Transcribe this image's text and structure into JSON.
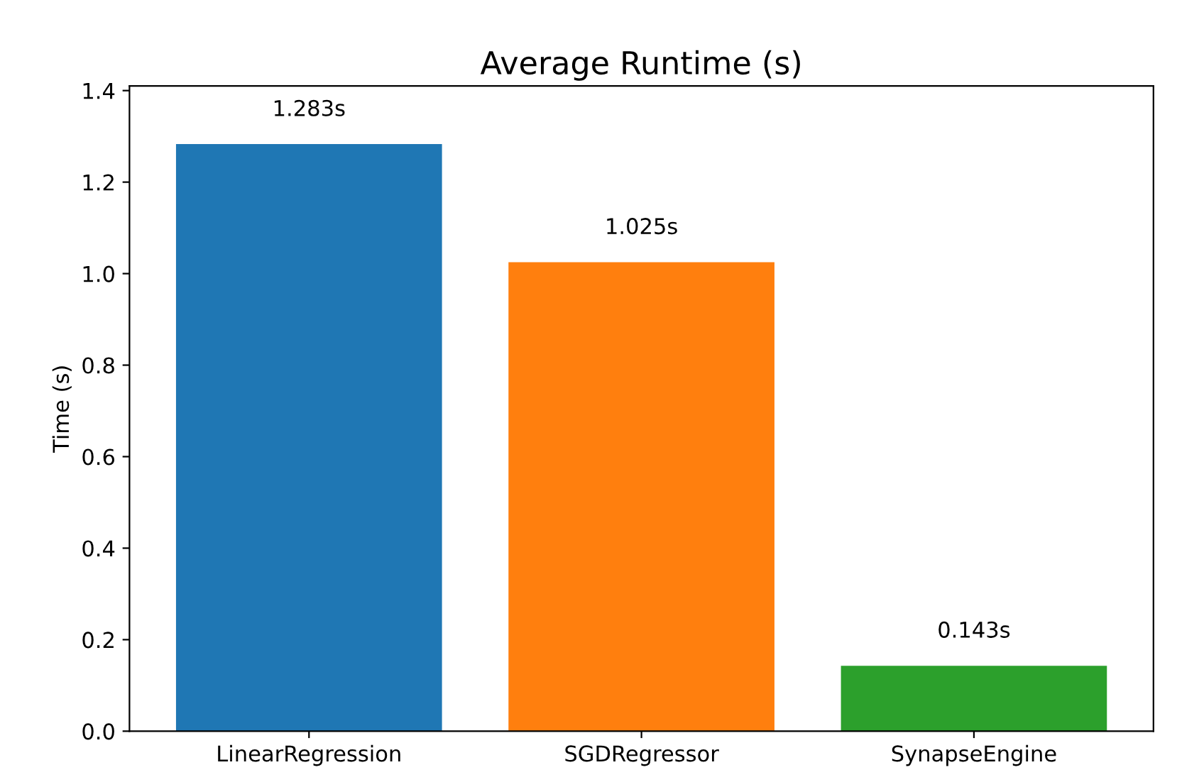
{
  "chart_data": {
    "type": "bar",
    "title": "Average Runtime (s)",
    "ylabel": "Time (s)",
    "categories": [
      "LinearRegression",
      "SGDRegressor",
      "SynapseEngine"
    ],
    "values": [
      1.283,
      1.025,
      0.143
    ],
    "colors": [
      "#1f77b4",
      "#ff7f0e",
      "#2ca02c"
    ],
    "value_labels": [
      "1.283s",
      "1.025s",
      "0.143s"
    ],
    "ylim": [
      0,
      1.41
    ],
    "yticks": [
      {
        "value": 0,
        "label": "0.0"
      },
      0.2,
      0.4,
      0.6,
      0.8,
      {
        "value": 1,
        "label": "1.0"
      },
      1.2,
      1.4
    ],
    "grid": false
  }
}
